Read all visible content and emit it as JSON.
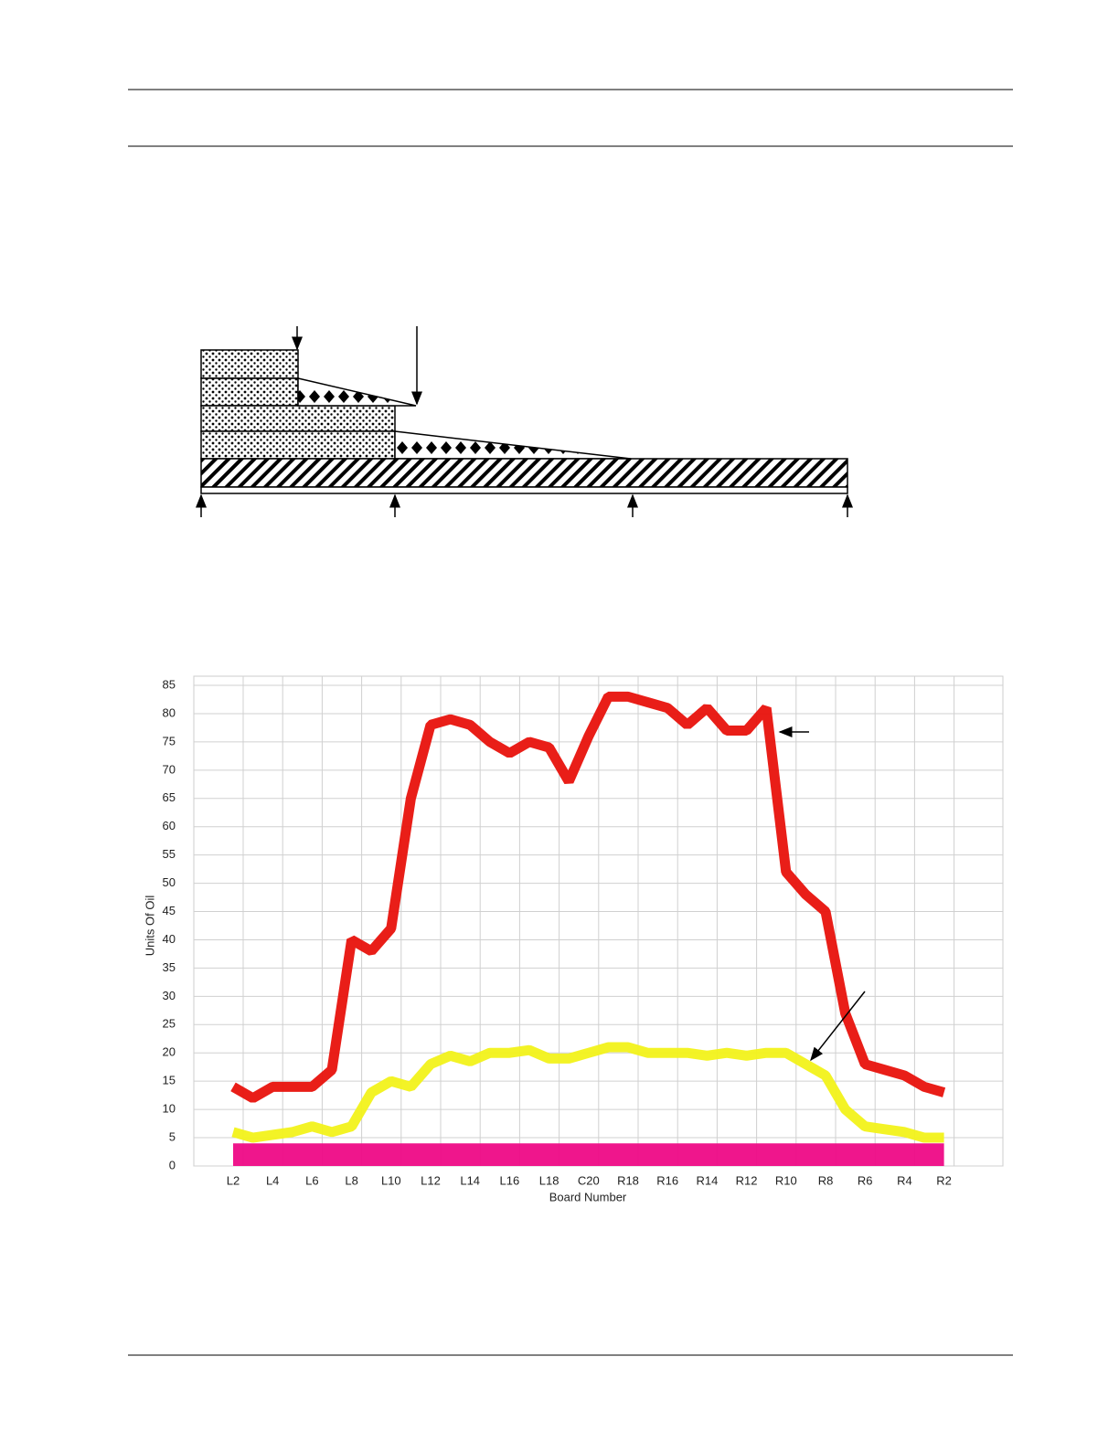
{
  "chart_data": {
    "type": "line",
    "x_label": "Board Number",
    "y_label": "Units Of Oil",
    "categories": [
      "L2",
      null,
      "L4",
      null,
      "L6",
      null,
      "L8",
      null,
      "L10",
      null,
      "L12",
      null,
      "L14",
      null,
      "L16",
      null,
      "L18",
      null,
      "C20",
      null,
      "R18",
      null,
      "R16",
      null,
      "R14",
      null,
      "R12",
      null,
      "R10",
      null,
      "R8",
      null,
      "R6",
      null,
      "R4",
      null,
      "R2"
    ],
    "series": [
      {
        "color": "#e8120c",
        "values": [
          14,
          12,
          14,
          14,
          14,
          17,
          40,
          38,
          42,
          65,
          78,
          79,
          78,
          75,
          73,
          75,
          74,
          68,
          76,
          83,
          83,
          82,
          81,
          78,
          81,
          77,
          77,
          81,
          52,
          48,
          45,
          27,
          18,
          17,
          16,
          14,
          13
        ]
      },
      {
        "color": "#f2f21a",
        "values": [
          6,
          5,
          5.5,
          6,
          7,
          6,
          7,
          13,
          15,
          14,
          18,
          19.5,
          18.5,
          20,
          20,
          20.5,
          19,
          19,
          20,
          21,
          21,
          20,
          20,
          20,
          19.5,
          20,
          19.5,
          20,
          20,
          18,
          16,
          10,
          7,
          6.5,
          6,
          5,
          5
        ]
      },
      {
        "color": "#ee0a86",
        "values": [
          2,
          2,
          2,
          2,
          2,
          2,
          2,
          2,
          2,
          2,
          2,
          2,
          2,
          2,
          2,
          2,
          2,
          2,
          2,
          2,
          2,
          2,
          2,
          2,
          2,
          2,
          2,
          2,
          2,
          2,
          2,
          2,
          2,
          2,
          2,
          2,
          2
        ]
      }
    ],
    "ylim": [
      0,
      85
    ],
    "yticks": [
      0,
      5,
      10,
      15,
      20,
      25,
      30,
      35,
      40,
      45,
      50,
      55,
      60,
      65,
      70,
      75,
      80,
      85
    ],
    "grid": true
  }
}
